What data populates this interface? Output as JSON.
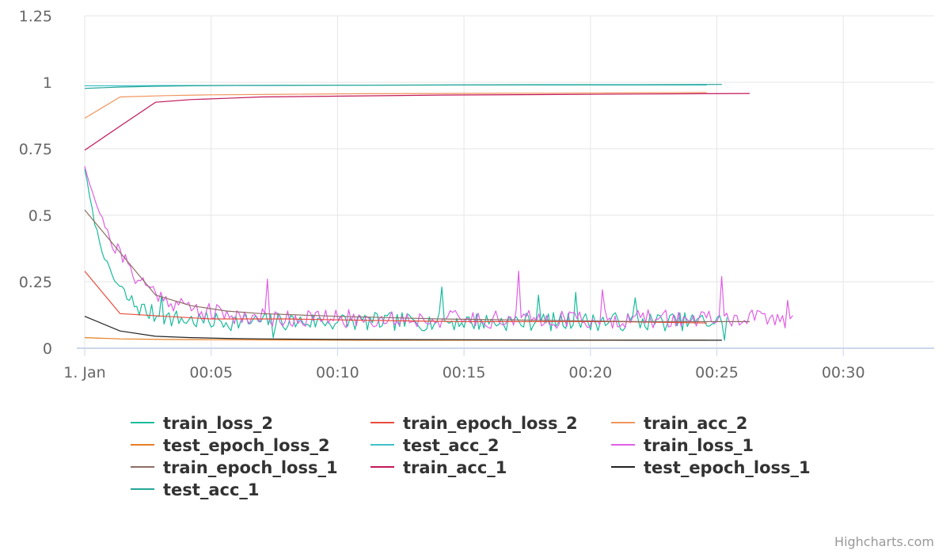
{
  "chart_data": {
    "type": "line",
    "title": "",
    "xlabel": "",
    "ylabel": "",
    "x_unit": "minutes",
    "xlim": [
      0,
      33.8
    ],
    "ylim": [
      0,
      1.25
    ],
    "y_ticks": [
      0,
      0.25,
      0.5,
      0.75,
      1,
      1.25
    ],
    "y_tick_labels": [
      "0",
      "0.25",
      "0.5",
      "0.75",
      "1",
      "1.25"
    ],
    "x_ticks": [
      0,
      5,
      10,
      15,
      20,
      25,
      30
    ],
    "x_tick_labels": [
      "1. Jan",
      "00:05",
      "00:10",
      "00:15",
      "00:20",
      "00:25",
      "00:30"
    ],
    "grid": true,
    "legend_position": "bottom",
    "credits": "Highcharts.com",
    "series": [
      {
        "name": "train_loss_2",
        "color": "#1abc9c",
        "kind": "noisy",
        "seed": 7,
        "n": 260,
        "xs": [
          0,
          25.4
        ],
        "start": 0.68,
        "decay": 0.9,
        "floor": 0.1,
        "noise": 0.035,
        "spikes": [
          [
            3.0,
            0.2
          ],
          [
            7.5,
            0.04
          ],
          [
            14.1,
            0.23
          ],
          [
            17.9,
            0.2
          ],
          [
            19.4,
            0.21
          ],
          [
            21.8,
            0.19
          ],
          [
            25.3,
            0.03
          ]
        ]
      },
      {
        "name": "train_epoch_loss_2",
        "color": "#e74c3c",
        "points": [
          [
            0,
            0.29
          ],
          [
            1.4,
            0.13
          ],
          [
            3.2,
            0.12
          ],
          [
            5,
            0.11
          ],
          [
            8,
            0.11
          ],
          [
            11,
            0.105
          ],
          [
            15,
            0.1
          ],
          [
            18,
            0.1
          ],
          [
            21,
            0.1
          ],
          [
            24.6,
            0.095
          ]
        ]
      },
      {
        "name": "train_acc_2",
        "color": "#f0955e",
        "points": [
          [
            0,
            0.865
          ],
          [
            1.4,
            0.945
          ],
          [
            3.2,
            0.95
          ],
          [
            5,
            0.953
          ],
          [
            8,
            0.955
          ],
          [
            11,
            0.957
          ],
          [
            14,
            0.958
          ],
          [
            18,
            0.959
          ],
          [
            21,
            0.96
          ],
          [
            24.6,
            0.962
          ]
        ]
      },
      {
        "name": "test_epoch_loss_2",
        "color": "#e67e22",
        "points": [
          [
            0,
            0.04
          ],
          [
            1.4,
            0.035
          ],
          [
            3.2,
            0.033
          ],
          [
            5,
            0.032
          ],
          [
            8,
            0.031
          ],
          [
            11,
            0.03
          ],
          [
            14,
            0.03
          ],
          [
            18,
            0.03
          ],
          [
            21,
            0.03
          ],
          [
            24.6,
            0.03
          ]
        ]
      },
      {
        "name": "test_acc_2",
        "color": "#3fc1c9",
        "points": [
          [
            0,
            0.987
          ],
          [
            1.4,
            0.987
          ],
          [
            3.2,
            0.988
          ],
          [
            5,
            0.988
          ],
          [
            8,
            0.989
          ],
          [
            11,
            0.989
          ],
          [
            15,
            0.99
          ],
          [
            18,
            0.99
          ],
          [
            21,
            0.99
          ],
          [
            24.6,
            0.99
          ]
        ]
      },
      {
        "name": "train_loss_1",
        "color": "#e05fe6",
        "kind": "noisy",
        "seed": 21,
        "n": 280,
        "xs": [
          0,
          28.0
        ],
        "start": 0.69,
        "decay": 1.6,
        "floor": 0.11,
        "noise": 0.035,
        "spikes": [
          [
            7.2,
            0.26
          ],
          [
            17.2,
            0.29
          ],
          [
            20.5,
            0.22
          ],
          [
            25.2,
            0.27
          ],
          [
            27.8,
            0.18
          ]
        ]
      },
      {
        "name": "train_epoch_loss_1",
        "color": "#8d6e63",
        "points": [
          [
            0,
            0.52
          ],
          [
            1.4,
            0.36
          ],
          [
            2.8,
            0.2
          ],
          [
            4.2,
            0.16
          ],
          [
            5.6,
            0.14
          ],
          [
            7,
            0.13
          ],
          [
            10,
            0.12
          ],
          [
            14,
            0.11
          ],
          [
            18,
            0.105
          ],
          [
            22,
            0.1
          ],
          [
            26.3,
            0.1
          ]
        ]
      },
      {
        "name": "train_acc_1",
        "color": "#c2185b",
        "points": [
          [
            0,
            0.745
          ],
          [
            1.4,
            0.835
          ],
          [
            2.8,
            0.925
          ],
          [
            4.2,
            0.935
          ],
          [
            5.6,
            0.94
          ],
          [
            7,
            0.945
          ],
          [
            10,
            0.948
          ],
          [
            14,
            0.952
          ],
          [
            18,
            0.954
          ],
          [
            22,
            0.956
          ],
          [
            26.3,
            0.958
          ]
        ]
      },
      {
        "name": "test_epoch_loss_1",
        "color": "#222222",
        "points": [
          [
            0,
            0.12
          ],
          [
            1.4,
            0.065
          ],
          [
            2.8,
            0.045
          ],
          [
            4.2,
            0.04
          ],
          [
            5.6,
            0.037
          ],
          [
            7,
            0.035
          ],
          [
            10,
            0.033
          ],
          [
            14,
            0.032
          ],
          [
            18,
            0.031
          ],
          [
            22,
            0.03
          ],
          [
            25.2,
            0.03
          ]
        ]
      },
      {
        "name": "test_acc_1",
        "color": "#26a69a",
        "points": [
          [
            0,
            0.977
          ],
          [
            1.4,
            0.982
          ],
          [
            2.8,
            0.985
          ],
          [
            4.2,
            0.987
          ],
          [
            5.6,
            0.988
          ],
          [
            7,
            0.988
          ],
          [
            10,
            0.989
          ],
          [
            14,
            0.99
          ],
          [
            18,
            0.991
          ],
          [
            22,
            0.991
          ],
          [
            25.2,
            0.992
          ]
        ]
      }
    ]
  }
}
